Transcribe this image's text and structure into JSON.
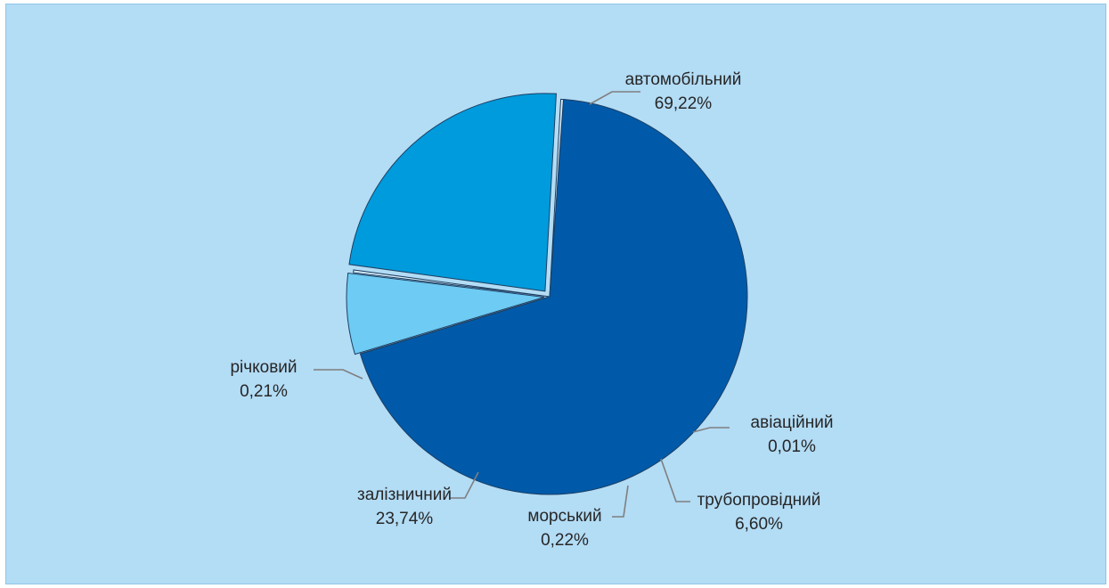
{
  "chart_data": {
    "type": "pie",
    "title": "",
    "slices": [
      {
        "label": "автомобільний",
        "value": 69.22,
        "value_label": "69,22%",
        "color": "#005aa9"
      },
      {
        "label": "авіаційний",
        "value": 0.01,
        "value_label": "0,01%",
        "color": "#8fc8ee"
      },
      {
        "label": "трубопровідний",
        "value": 6.6,
        "value_label": "6,60%",
        "color": "#6ecbf3"
      },
      {
        "label": "морський",
        "value": 0.22,
        "value_label": "0,22%",
        "color": "#d9eef9"
      },
      {
        "label": "залізничний",
        "value": 23.74,
        "value_label": "23,74%",
        "color": "#009bdc"
      },
      {
        "label": "річковий",
        "value": 0.21,
        "value_label": "0,21%",
        "color": "#d9eef9"
      }
    ],
    "legend": "none",
    "data_labels": "outside with leader lines"
  }
}
